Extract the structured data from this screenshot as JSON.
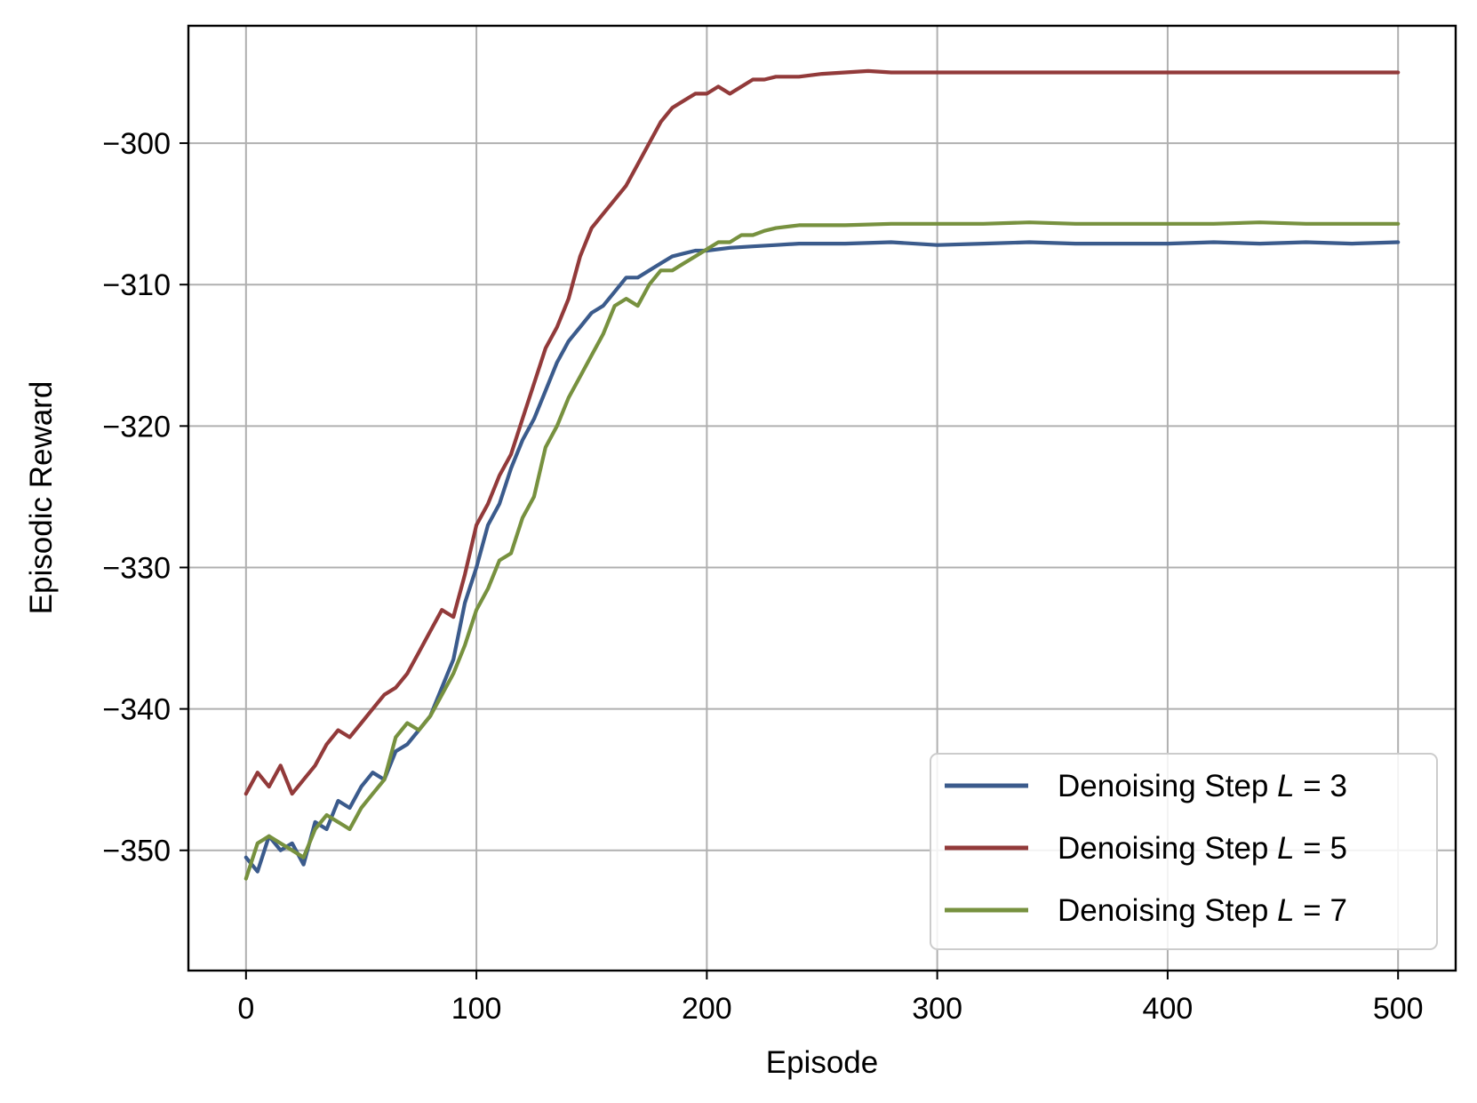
{
  "chart_data": {
    "type": "line",
    "title": "",
    "xlabel": "Episode",
    "ylabel": "Episodic Reward",
    "xlim": [
      -25,
      525
    ],
    "ylim": [
      -358.5,
      -291.7
    ],
    "xticks": [
      0,
      100,
      200,
      300,
      400,
      500
    ],
    "yticks": [
      -350,
      -340,
      -330,
      -320,
      -310,
      -300
    ],
    "xtick_labels": [
      "0",
      "100",
      "200",
      "300",
      "400",
      "500"
    ],
    "ytick_labels": [
      "−350",
      "−340",
      "−330",
      "−320",
      "−310",
      "−300"
    ],
    "grid": true,
    "legend_position": "lower-right",
    "series": [
      {
        "legend_prefix": "Denoising Step ",
        "legend_var": "L",
        "legend_suffix": " = 3",
        "color": "#3b5b8c",
        "x": [
          0,
          5,
          10,
          15,
          20,
          25,
          30,
          35,
          40,
          45,
          50,
          55,
          60,
          65,
          70,
          75,
          80,
          85,
          90,
          95,
          100,
          105,
          110,
          115,
          120,
          125,
          130,
          135,
          140,
          145,
          150,
          155,
          160,
          165,
          170,
          175,
          180,
          185,
          190,
          195,
          200,
          210,
          220,
          230,
          240,
          250,
          260,
          280,
          300,
          320,
          340,
          360,
          380,
          400,
          420,
          440,
          460,
          480,
          500
        ],
        "y": [
          -350.5,
          -351.5,
          -349,
          -350,
          -349.5,
          -351,
          -348,
          -348.5,
          -346.5,
          -347,
          -345.5,
          -344.5,
          -345,
          -343,
          -342.5,
          -341.5,
          -340.5,
          -338.5,
          -336.5,
          -332.5,
          -330,
          -327,
          -325.5,
          -323,
          -321,
          -319.5,
          -317.5,
          -315.5,
          -314,
          -313,
          -312,
          -311.5,
          -310.5,
          -309.5,
          -309.5,
          -309,
          -308.5,
          -308,
          -307.8,
          -307.6,
          -307.6,
          -307.4,
          -307.3,
          -307.2,
          -307.1,
          -307.1,
          -307.1,
          -307,
          -307.2,
          -307.1,
          -307,
          -307.1,
          -307.1,
          -307.1,
          -307,
          -307.1,
          -307,
          -307.1,
          -307
        ]
      },
      {
        "legend_prefix": "Denoising Step ",
        "legend_var": "L",
        "legend_suffix": " = 5",
        "color": "#923a3a",
        "x": [
          0,
          5,
          10,
          15,
          20,
          25,
          30,
          35,
          40,
          45,
          50,
          55,
          60,
          65,
          70,
          75,
          80,
          85,
          90,
          95,
          100,
          105,
          110,
          115,
          120,
          125,
          130,
          135,
          140,
          145,
          150,
          155,
          160,
          165,
          170,
          175,
          180,
          185,
          190,
          195,
          200,
          205,
          210,
          215,
          220,
          225,
          230,
          240,
          250,
          260,
          270,
          280,
          300,
          320,
          340,
          360,
          380,
          400,
          420,
          440,
          460,
          480,
          500
        ],
        "y": [
          -346,
          -344.5,
          -345.5,
          -344,
          -346,
          -345,
          -344,
          -342.5,
          -341.5,
          -342,
          -341,
          -340,
          -339,
          -338.5,
          -337.5,
          -336,
          -334.5,
          -333,
          -333.5,
          -330.5,
          -327,
          -325.5,
          -323.5,
          -322,
          -319.5,
          -317,
          -314.5,
          -313,
          -311,
          -308,
          -306,
          -305,
          -304,
          -303,
          -301.5,
          -300,
          -298.5,
          -297.5,
          -297,
          -296.5,
          -296.5,
          -296,
          -296.5,
          -296,
          -295.5,
          -295.5,
          -295.3,
          -295.3,
          -295.1,
          -295,
          -294.9,
          -295,
          -295,
          -295,
          -295,
          -295,
          -295,
          -295,
          -295,
          -295,
          -295,
          -295,
          -295
        ]
      },
      {
        "legend_prefix": "Denoising Step ",
        "legend_var": "L",
        "legend_suffix": " = 7",
        "color": "#77913f",
        "x": [
          0,
          5,
          10,
          15,
          20,
          25,
          30,
          35,
          40,
          45,
          50,
          55,
          60,
          65,
          70,
          75,
          80,
          85,
          90,
          95,
          100,
          105,
          110,
          115,
          120,
          125,
          130,
          135,
          140,
          145,
          150,
          155,
          160,
          165,
          170,
          175,
          180,
          185,
          190,
          195,
          200,
          205,
          210,
          215,
          220,
          225,
          230,
          240,
          250,
          260,
          280,
          300,
          320,
          340,
          360,
          380,
          400,
          420,
          440,
          460,
          480,
          500
        ],
        "y": [
          -352,
          -349.5,
          -349,
          -349.5,
          -350,
          -350.5,
          -348.5,
          -347.5,
          -348,
          -348.5,
          -347,
          -346,
          -345,
          -342,
          -341,
          -341.5,
          -340.5,
          -339,
          -337.5,
          -335.5,
          -333,
          -331.5,
          -329.5,
          -329,
          -326.5,
          -325,
          -321.5,
          -320,
          -318,
          -316.5,
          -315,
          -313.5,
          -311.5,
          -311,
          -311.5,
          -310,
          -309,
          -309,
          -308.5,
          -308,
          -307.5,
          -307,
          -307,
          -306.5,
          -306.5,
          -306.2,
          -306,
          -305.8,
          -305.8,
          -305.8,
          -305.7,
          -305.7,
          -305.7,
          -305.6,
          -305.7,
          -305.7,
          -305.7,
          -305.7,
          -305.6,
          -305.7,
          -305.7,
          -305.7
        ]
      }
    ]
  }
}
